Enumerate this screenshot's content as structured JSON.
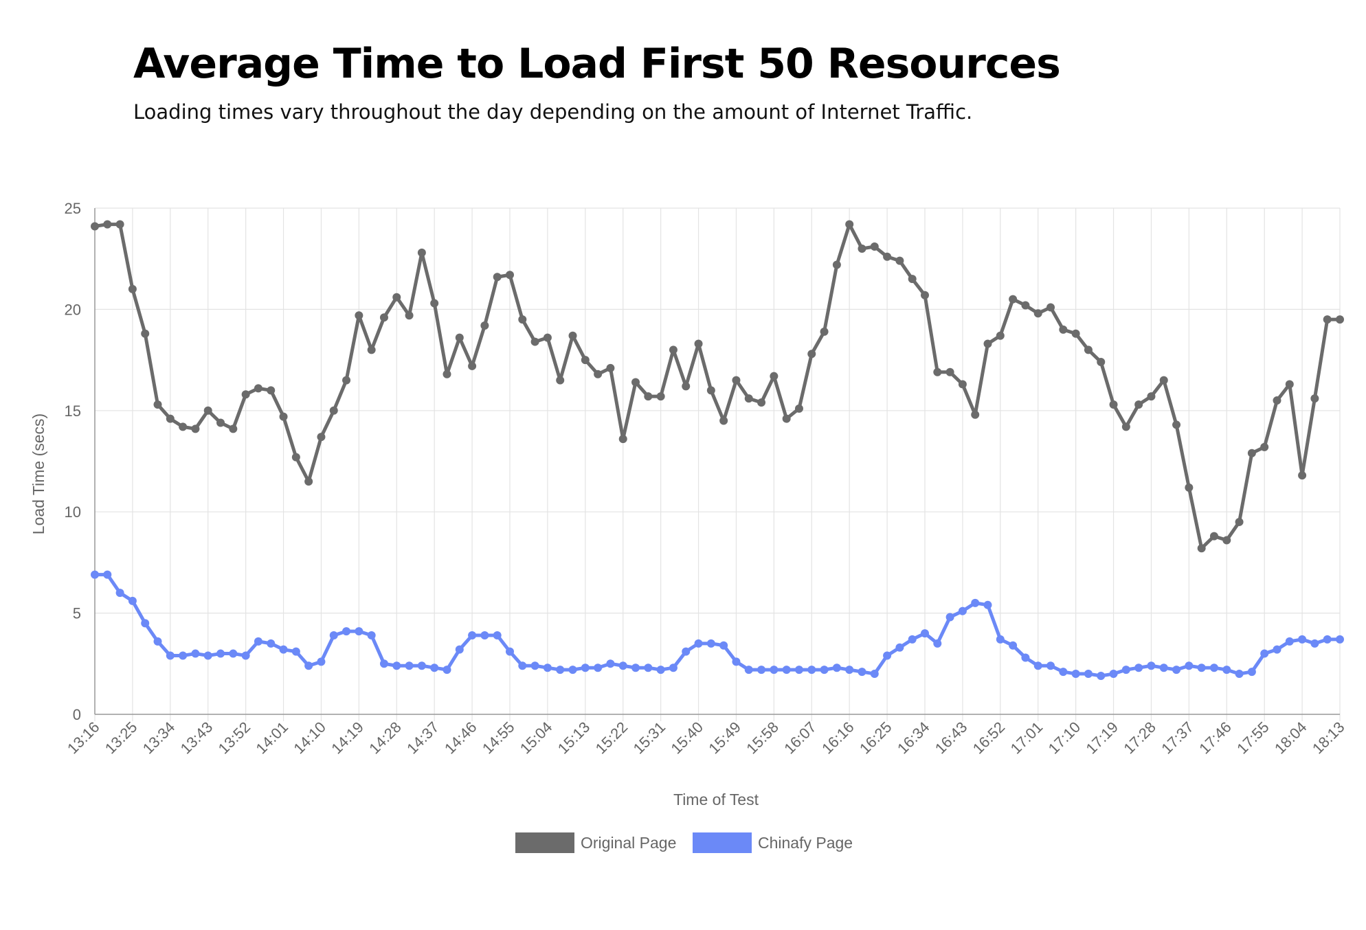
{
  "header": {
    "title": "Average Time to Load First 50 Resources",
    "subtitle": "Loading times vary throughout the day depending on the amount of Internet Traffic."
  },
  "chart_data": {
    "type": "line",
    "title": "Average Time to Load First 50 Resources",
    "subtitle": "Loading times vary throughout the day depending on the amount of Internet Traffic.",
    "xlabel": "Time of Test",
    "ylabel": "Load Time (secs)",
    "ylim": [
      0,
      25
    ],
    "yticks": [
      0,
      5,
      10,
      15,
      20,
      25
    ],
    "grid": true,
    "legend_position": "bottom",
    "x_tick_labels": [
      "13:16",
      "13:25",
      "13:34",
      "13:43",
      "13:52",
      "14:01",
      "14:10",
      "14:19",
      "14:28",
      "14:37",
      "14:46",
      "14:55",
      "15:04",
      "15:13",
      "15:22",
      "15:31",
      "15:40",
      "15:49",
      "15:58",
      "16:07",
      "16:16",
      "16:25",
      "16:34",
      "16:43",
      "16:52",
      "17:01",
      "17:10",
      "17:19",
      "17:28",
      "17:37",
      "17:46",
      "17:55",
      "18:04",
      "18:13"
    ],
    "x_tick_every": 3,
    "point_count": 100,
    "series": [
      {
        "name": "Original Page",
        "color": "#6b6b6b",
        "values": [
          24.1,
          24.2,
          24.2,
          21.0,
          18.8,
          15.3,
          14.6,
          14.2,
          14.1,
          15.0,
          14.4,
          14.1,
          15.8,
          16.1,
          16.0,
          14.7,
          12.7,
          11.5,
          13.7,
          15.0,
          16.5,
          19.7,
          18.0,
          19.6,
          20.6,
          19.7,
          22.8,
          20.3,
          16.8,
          18.6,
          17.2,
          19.2,
          21.6,
          21.7,
          19.5,
          18.4,
          18.6,
          16.5,
          18.7,
          17.5,
          16.8,
          17.1,
          13.6,
          16.4,
          15.7,
          15.7,
          18.0,
          16.2,
          18.3,
          16.0,
          14.5,
          16.5,
          15.6,
          15.4,
          16.7,
          14.6,
          15.1,
          17.8,
          18.9,
          22.2,
          24.2,
          23.0,
          23.1,
          22.6,
          22.4,
          21.5,
          20.7,
          16.9,
          16.9,
          16.3,
          14.8,
          18.3,
          18.7,
          20.5,
          20.2,
          19.8,
          20.1,
          19.0,
          18.8,
          18.0,
          17.4,
          15.3,
          14.2,
          15.3,
          15.7,
          16.5,
          14.3,
          11.2,
          8.2,
          8.8,
          8.6,
          9.5,
          12.9,
          13.2,
          15.5,
          16.3,
          11.8,
          15.6,
          19.5,
          19.5
        ]
      },
      {
        "name": "Chinafy Page",
        "color": "#6b89f7",
        "values": [
          6.9,
          6.9,
          6.0,
          5.6,
          4.5,
          3.6,
          2.9,
          2.9,
          3.0,
          2.9,
          3.0,
          3.0,
          2.9,
          3.6,
          3.5,
          3.2,
          3.1,
          2.4,
          2.6,
          3.9,
          4.1,
          4.1,
          3.9,
          2.5,
          2.4,
          2.4,
          2.4,
          2.3,
          2.2,
          3.2,
          3.9,
          3.9,
          3.9,
          3.1,
          2.4,
          2.4,
          2.3,
          2.2,
          2.2,
          2.3,
          2.3,
          2.5,
          2.4,
          2.3,
          2.3,
          2.2,
          2.3,
          3.1,
          3.5,
          3.5,
          3.4,
          2.6,
          2.2,
          2.2,
          2.2,
          2.2,
          2.2,
          2.2,
          2.2,
          2.3,
          2.2,
          2.1,
          2.0,
          2.9,
          3.3,
          3.7,
          4.0,
          3.5,
          4.8,
          5.1,
          5.5,
          5.4,
          3.7,
          3.4,
          2.8,
          2.4,
          2.4,
          2.1,
          2.0,
          2.0,
          1.9,
          2.0,
          2.2,
          2.3,
          2.4,
          2.3,
          2.2,
          2.4,
          2.3,
          2.3,
          2.2,
          2.0,
          2.1,
          3.0,
          3.2,
          3.6,
          3.7,
          3.5,
          3.7,
          3.7
        ]
      }
    ]
  }
}
